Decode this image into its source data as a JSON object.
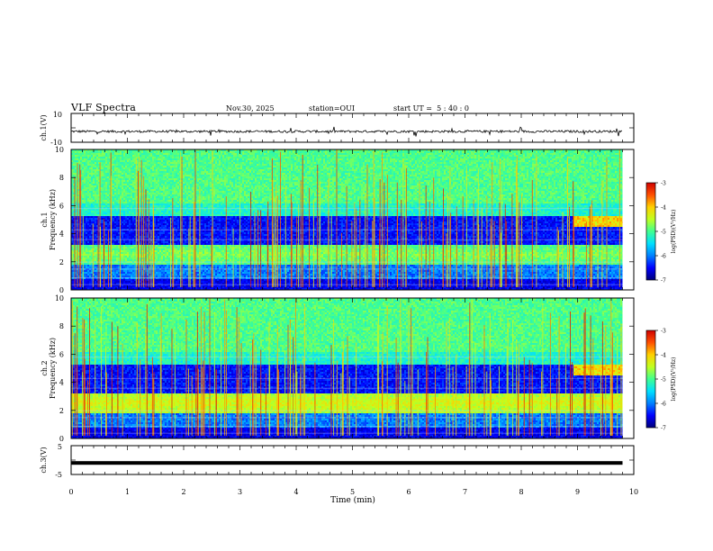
{
  "header": {
    "title": "VLF Spectra",
    "date": "Nov.30, 2025",
    "station": "station=OUI",
    "start_ut": "start UT =  5 : 40 : 0"
  },
  "colors": {
    "spectrogram_colormap": [
      "#00007a",
      "#0000ff",
      "#0080ff",
      "#00e0ff",
      "#40ff90",
      "#c0ff20",
      "#ffd000",
      "#ff5000",
      "#d00000",
      "#ffffff"
    ]
  },
  "chart_data": [
    {
      "type": "line",
      "name": "ch1-waveform",
      "ylabel": "ch.1(V)",
      "ylim": [
        -10,
        10
      ],
      "yticks": [
        10,
        -10
      ],
      "baseline": -2.5,
      "x_range": [
        0,
        9.8
      ]
    },
    {
      "type": "heatmap",
      "name": "ch1-spectrogram",
      "ylabel": "ch.1",
      "ylabel2": "Frequency (kHz)",
      "ylim": [
        0,
        10
      ],
      "yticks": [
        0,
        2,
        4,
        6,
        8,
        10
      ],
      "x_range": [
        0,
        9.8
      ],
      "intense_band_khz": [
        1.9,
        3.3
      ],
      "colorbar": {
        "label": "log(PSD)(V²/Hz)",
        "range": [
          -7,
          -3
        ],
        "ticks": [
          -3,
          -4,
          -5,
          -6,
          -7
        ]
      }
    },
    {
      "type": "heatmap",
      "name": "ch2-spectrogram",
      "ylabel": "ch.2",
      "ylabel2": "Frequency (kHz)",
      "ylim": [
        0,
        10
      ],
      "yticks": [
        0,
        2,
        4,
        6,
        8,
        10
      ],
      "x_range": [
        0,
        9.8
      ],
      "intense_band_khz": [
        1.9,
        3.3
      ],
      "colorbar": {
        "label": "log(PSD)(V²/Hz)",
        "range": [
          -7,
          -3
        ],
        "ticks": [
          -3,
          -4,
          -5,
          -6,
          -7
        ]
      }
    },
    {
      "type": "line",
      "name": "ch3-waveform",
      "ylabel": "ch.3(V)",
      "ylim": [
        -5,
        5
      ],
      "yticks": [
        5,
        0,
        -5
      ],
      "constant_value": -1,
      "x_range": [
        0,
        9.8
      ]
    }
  ],
  "xaxis": {
    "label": "Time (min)",
    "min": 0,
    "max": 10,
    "ticks": [
      0,
      1,
      2,
      3,
      4,
      5,
      6,
      7,
      8,
      9,
      10
    ]
  }
}
